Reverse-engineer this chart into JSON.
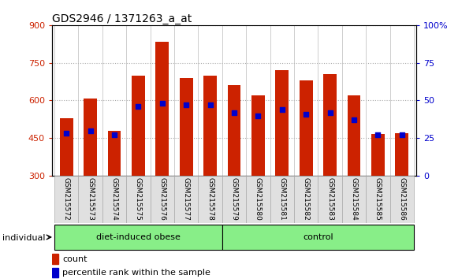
{
  "title": "GDS2946 / 1371263_a_at",
  "samples": [
    "GSM215572",
    "GSM215573",
    "GSM215574",
    "GSM215575",
    "GSM215576",
    "GSM215577",
    "GSM215578",
    "GSM215579",
    "GSM215580",
    "GSM215581",
    "GSM215582",
    "GSM215583",
    "GSM215584",
    "GSM215585",
    "GSM215586"
  ],
  "count_values": [
    530,
    608,
    480,
    700,
    835,
    690,
    700,
    660,
    620,
    720,
    680,
    705,
    620,
    465,
    470
  ],
  "percentile_values": [
    28,
    30,
    27,
    46,
    48,
    47,
    47,
    42,
    40,
    44,
    41,
    42,
    37,
    27,
    27
  ],
  "group_boundary": 7,
  "ylim_left": [
    300,
    900
  ],
  "ylim_right": [
    0,
    100
  ],
  "yticks_left": [
    300,
    450,
    600,
    750,
    900
  ],
  "yticks_right": [
    0,
    25,
    50,
    75,
    100
  ],
  "bar_color": "#CC2200",
  "dot_color": "#0000CC",
  "bg_color": "#E0E0E0",
  "plot_bg": "#FFFFFF",
  "group_color": "#88EE88",
  "individual_label": "individual",
  "legend_count_label": "count",
  "legend_percentile_label": "percentile rank within the sample",
  "group_labels": [
    "diet-induced obese",
    "control"
  ]
}
